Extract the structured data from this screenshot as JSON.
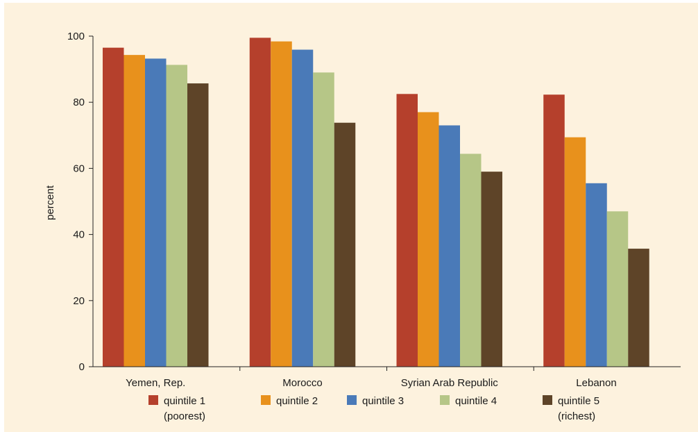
{
  "chart_data": {
    "type": "bar",
    "title": "",
    "xlabel": "",
    "ylabel": "percent",
    "ylim": [
      0,
      100
    ],
    "yticks": [
      0,
      20,
      40,
      60,
      80,
      100
    ],
    "grid": false,
    "legend_position": "bottom",
    "categories": [
      "Yemen, Rep.",
      "Morocco",
      "Syrian Arab Republic",
      "Lebanon"
    ],
    "series": [
      {
        "name": "quintile 1",
        "name_line2": "(poorest)",
        "color": "#b5402c",
        "values": [
          96.5,
          99.5,
          82.5,
          82.3
        ]
      },
      {
        "name": "quintile 2",
        "color": "#e8911c",
        "values": [
          94.3,
          98.4,
          77.0,
          69.4
        ]
      },
      {
        "name": "quintile 3",
        "color": "#4a7ab8",
        "values": [
          93.2,
          95.9,
          73.0,
          55.5
        ]
      },
      {
        "name": "quintile 4",
        "color": "#b6c687",
        "values": [
          91.3,
          89.0,
          64.4,
          47.0
        ]
      },
      {
        "name": "quintile 5",
        "name_line2": "(richest)",
        "color": "#5e4428",
        "values": [
          85.7,
          73.8,
          59.0,
          35.7
        ]
      }
    ]
  }
}
